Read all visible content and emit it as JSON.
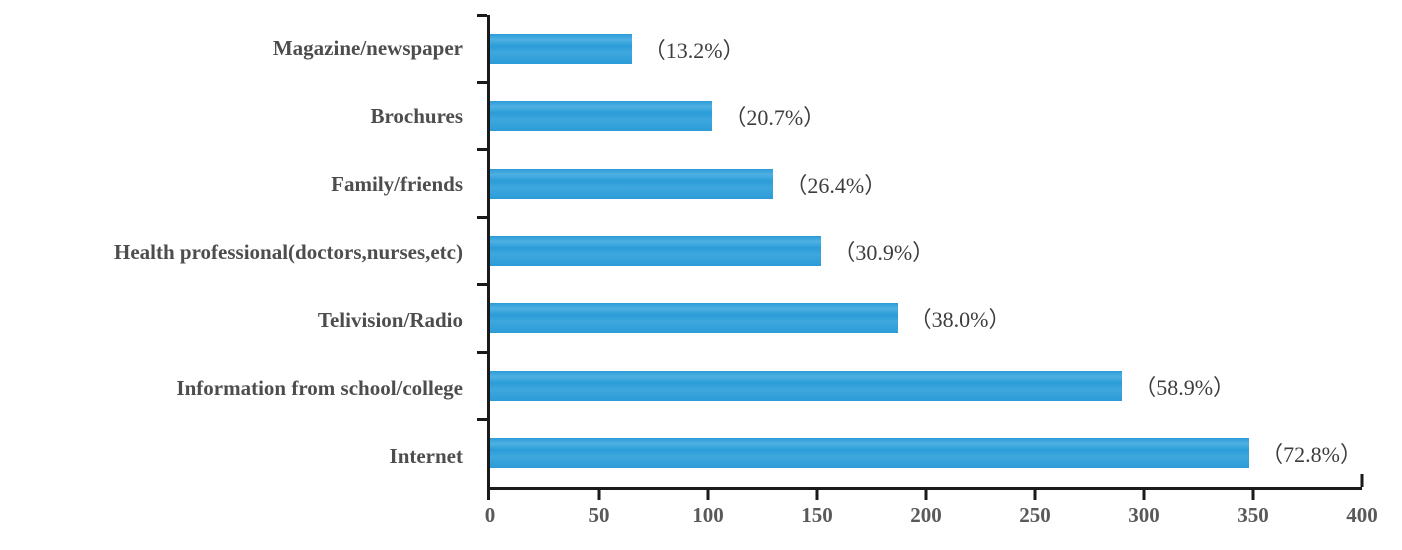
{
  "chart_data": {
    "type": "bar",
    "orientation": "horizontal",
    "title": "",
    "xlabel": "",
    "ylabel": "",
    "grid": false,
    "legend": false,
    "xlim": [
      0,
      400
    ],
    "x_ticks": [
      "0",
      "50",
      "100",
      "150",
      "200",
      "250",
      "300",
      "350",
      "400"
    ],
    "categories": [
      "Magazine/newspaper",
      "Brochures",
      "Family/friends",
      "Health professional(doctors,nurses,etc)",
      "Telivision/Radio",
      "Information from school/college",
      "Internet"
    ],
    "values": [
      65,
      102,
      130,
      152,
      187,
      290,
      358
    ],
    "bar_labels": [
      "（13.2%）",
      "（20.7%）",
      "（26.4%）",
      "（30.9%）",
      "（38.0%）",
      "（58.9%）",
      "（72.8%）"
    ],
    "percentages": [
      13.2,
      20.7,
      26.4,
      30.9,
      38.0,
      58.9,
      72.8
    ],
    "bar_color": "#2B9CD8",
    "axis_color": "#1A1A1A",
    "category_label_color": "#4D4D4D",
    "value_label_color": "#3D3D3D",
    "tick_label_color": "#595959"
  }
}
